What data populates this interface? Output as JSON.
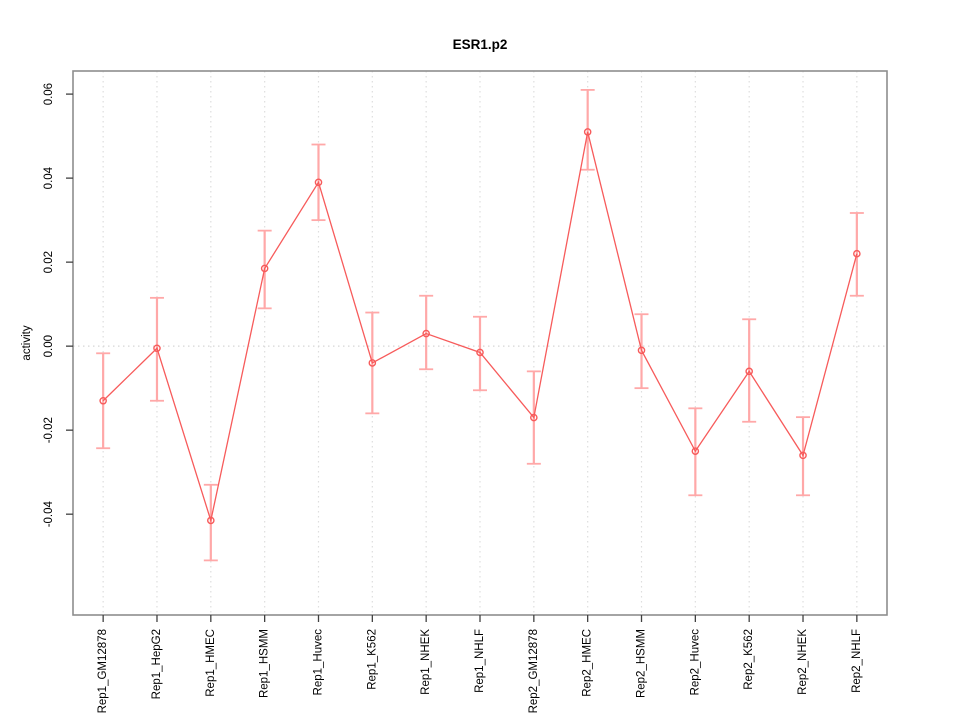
{
  "chart_data": {
    "type": "line",
    "title": "ESR1.p2",
    "xlabel": "",
    "ylabel": "activity",
    "legend": "none",
    "marker": "open-circle",
    "categories": [
      "Rep1_GM12878",
      "Rep1_HepG2",
      "Rep1_HMEC",
      "Rep1_HSMM",
      "Rep1_Huvec",
      "Rep1_K562",
      "Rep1_NHEK",
      "Rep1_NHLF",
      "Rep2_GM12878",
      "Rep2_HMEC",
      "Rep2_HSMM",
      "Rep2_Huvec",
      "Rep2_K562",
      "Rep2_NHEK",
      "Rep2_NHLF"
    ],
    "series": [
      {
        "name": "ESR1.p2 activity",
        "values": [
          -0.013,
          -0.0005,
          -0.0415,
          0.0185,
          0.039,
          -0.004,
          0.003,
          -0.0015,
          -0.017,
          0.051,
          -0.001,
          -0.025,
          -0.006,
          -0.026,
          0.022
        ],
        "ci_lower": [
          -0.0243,
          -0.013,
          -0.051,
          0.009,
          0.03,
          -0.016,
          -0.0055,
          -0.0105,
          -0.028,
          0.042,
          -0.01,
          -0.0355,
          -0.018,
          -0.0355,
          0.012
        ],
        "ci_upper": [
          -0.0017,
          0.0115,
          -0.033,
          0.0275,
          0.048,
          0.008,
          0.012,
          0.007,
          -0.006,
          0.061,
          0.0076,
          -0.0148,
          0.0064,
          -0.0169,
          0.0317
        ]
      }
    ],
    "yticks": {
      "values": [
        -0.04,
        -0.02,
        0,
        0.02,
        0.04,
        0.06
      ],
      "labels": [
        "-0.04",
        "-0.02",
        "0.00",
        "0.02",
        "0.04",
        "0.06"
      ]
    },
    "ylim": [
      -0.064,
      0.0655
    ],
    "grid": {
      "vertical": "dotted line at each category",
      "horizontal": "dotted line at zero"
    },
    "colors": {
      "line": "#f75b5b",
      "error_bar": "#ffa8a8",
      "grid": "#dedede",
      "zero_line": "#d6d6d6",
      "frame": "#8e8e8e",
      "tick": "#404040",
      "text": "#000000"
    }
  }
}
